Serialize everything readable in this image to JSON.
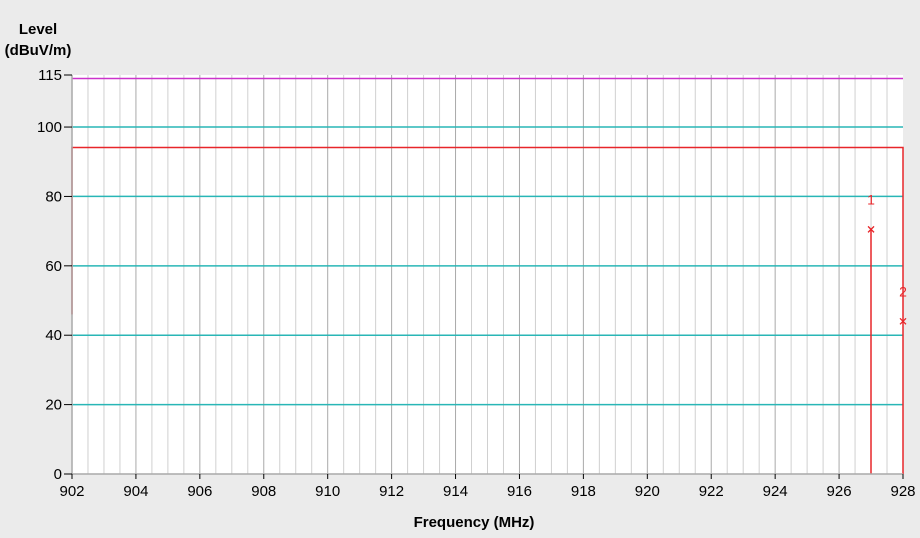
{
  "chart_data": {
    "type": "line",
    "ylabel_lines": [
      "Level",
      "(dBuV/m)"
    ],
    "xlabel": "Frequency (MHz)",
    "xlim": [
      902,
      928
    ],
    "ylim": [
      0,
      115
    ],
    "x_ticks": [
      "902",
      "904",
      "906",
      "908",
      "910",
      "912",
      "914",
      "916",
      "918",
      "920",
      "922",
      "924",
      "926",
      "928"
    ],
    "y_ticks": [
      "0",
      "20",
      "40",
      "60",
      "80",
      "100",
      "115"
    ],
    "grid": true,
    "reference_lines": [
      {
        "y": 114,
        "color": "#cc33cc"
      },
      {
        "y": 100,
        "color": "#29b6b6"
      },
      {
        "y": 80,
        "color": "#29b6b6"
      },
      {
        "y": 60,
        "color": "#29b6b6"
      },
      {
        "y": 40,
        "color": "#29b6b6"
      },
      {
        "y": 20,
        "color": "#29b6b6"
      }
    ],
    "series": [
      {
        "color": "#e8262a",
        "points": [
          [
            902.0,
            46
          ],
          [
            902.0,
            94.1
          ],
          [
            928.0,
            94.1
          ],
          [
            928.0,
            0
          ]
        ]
      },
      {
        "color": "#e8262a",
        "points": [
          [
            927.0,
            0
          ],
          [
            927.0,
            70.5
          ]
        ]
      }
    ],
    "markers": [
      {
        "label": "1",
        "x": 927.0,
        "y": 70.5
      },
      {
        "label": "2",
        "x": 928.0,
        "y": 44.0
      }
    ],
    "colors": {
      "major_grid": "#a9a9a9",
      "minor_grid": "#d0d0d0",
      "background": "#ffffff",
      "frame": "#ebebeb"
    }
  }
}
